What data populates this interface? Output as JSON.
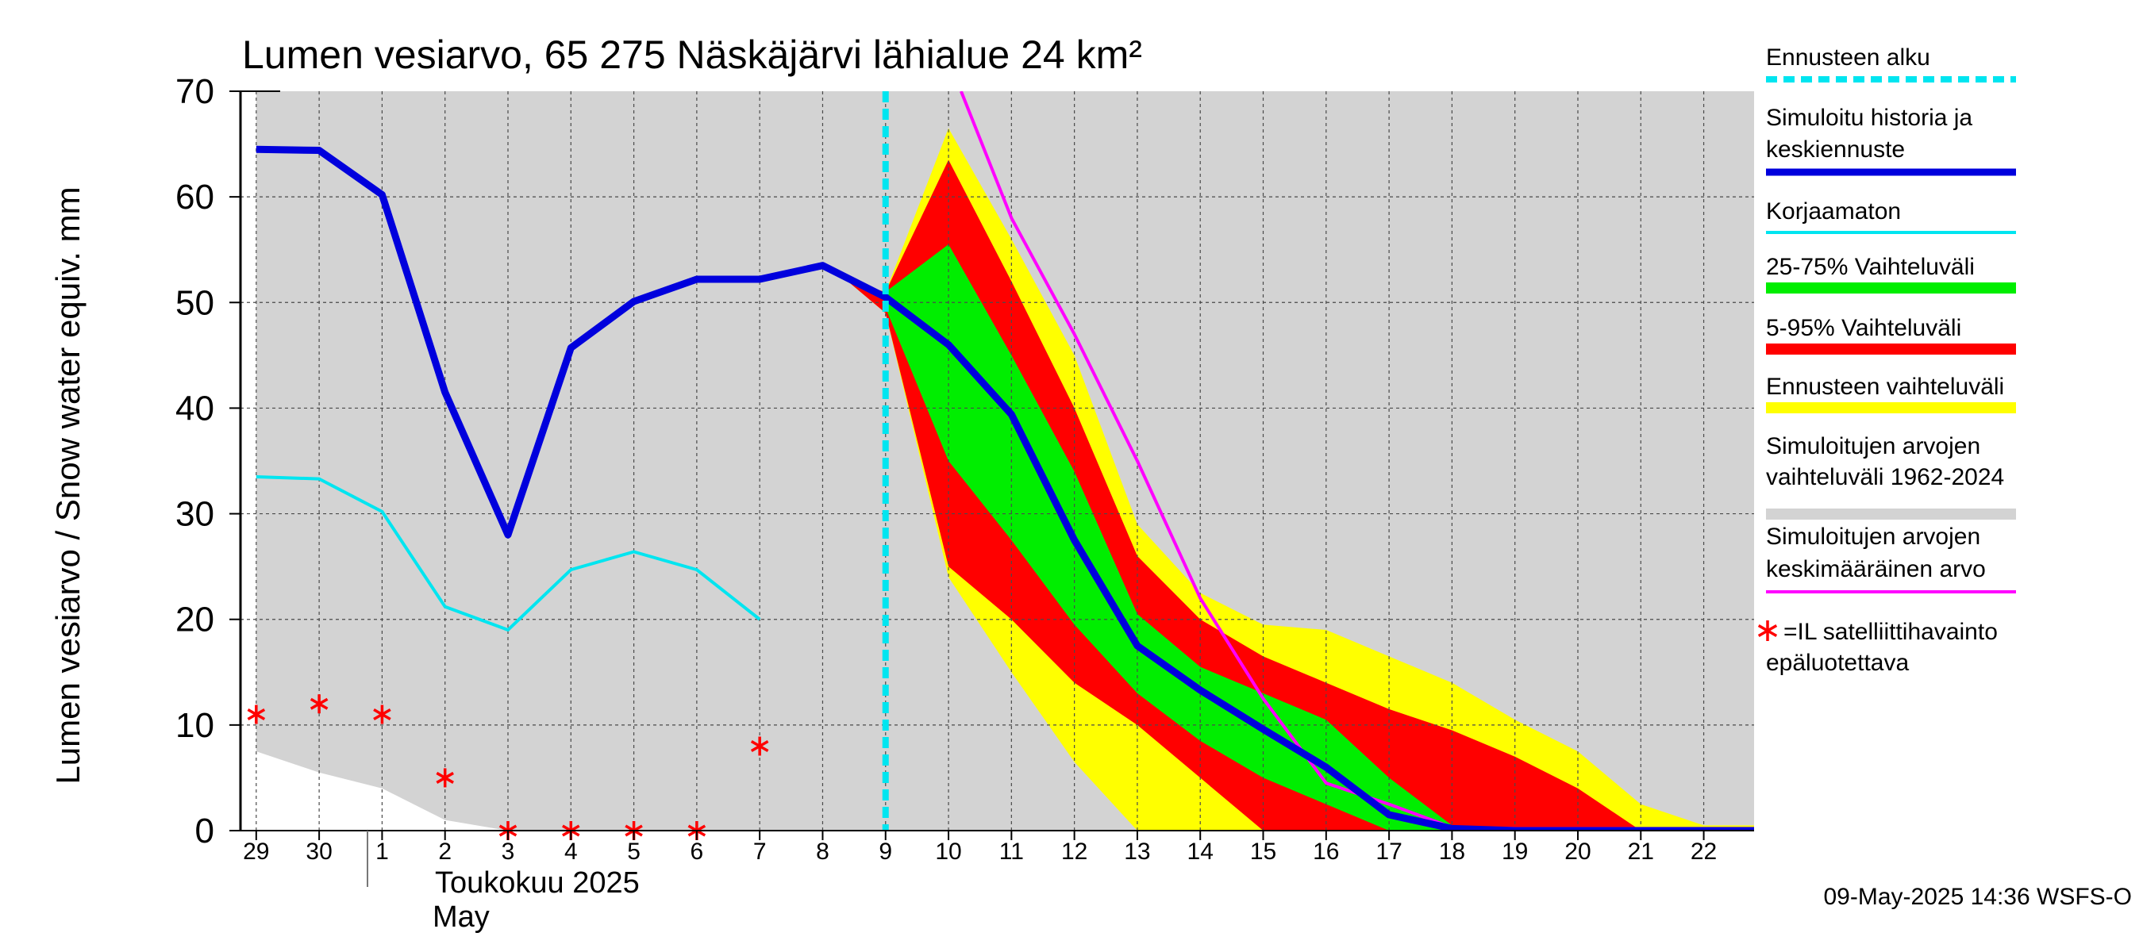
{
  "chart_data": {
    "type": "area",
    "title": "Lumen vesiarvo, 65 275 Näskäjärvi lähialue 24 km²",
    "ylabel": "Lumen vesiarvo / Snow water equiv.    mm",
    "ylim": [
      0,
      70
    ],
    "yticks": [
      "0",
      "10",
      "20",
      "30",
      "40",
      "50",
      "60",
      "70"
    ],
    "xlim": [
      -0.25,
      23.8
    ],
    "x_day_labels": [
      "29",
      "30",
      "1",
      "2",
      "3",
      "4",
      "5",
      "6",
      "7",
      "8",
      "9",
      "10",
      "11",
      "12",
      "13",
      "14",
      "15",
      "16",
      "17",
      "18",
      "19",
      "20",
      "21",
      "22"
    ],
    "month_label_fi": "Toukokuu  2025",
    "month_label_en": "May",
    "grid": true,
    "forecast_start_x": 10,
    "legend_position": "right",
    "legend": [
      {
        "label": "Ennusteen alku",
        "color": "#00e5f0",
        "style": "dashed"
      },
      {
        "label": "Simuloitu historia ja keskiennuste",
        "color": "#0000dd",
        "style": "line"
      },
      {
        "label": "Korjaamaton",
        "color": "#00e5f0",
        "style": "line"
      },
      {
        "label": "25-75% Vaihteluväli",
        "color": "#00ee00",
        "style": "band"
      },
      {
        "label": "5-95% Vaihteluväli",
        "color": "#ff0000",
        "style": "band"
      },
      {
        "label": "Ennusteen vaihteluväli",
        "color": "#ffff00",
        "style": "band"
      },
      {
        "label": "Simuloitujen arvojen vaihteluväli 1962-2024",
        "color": "#d3d3d3",
        "style": "band"
      },
      {
        "label": "Simuloitujen arvojen keskimääräinen arvo",
        "color": "#ff00ff",
        "style": "line"
      },
      {
        "label": "=IL satelliittihavainto epäluotettava",
        "color": "#ff0000",
        "style": "marker"
      }
    ],
    "series": [
      {
        "name": "Simuloitujen arvojen vaihteluväli 1962-2024",
        "kind": "band",
        "color": "#d3d3d3",
        "x": [
          0,
          1,
          2,
          3,
          4,
          5,
          6,
          7,
          8,
          9,
          10,
          11,
          12,
          13,
          14,
          15,
          16,
          17,
          18,
          19,
          20,
          21,
          22,
          23,
          23.8
        ],
        "low": [
          7.5,
          5.5,
          4,
          1,
          0,
          0,
          0,
          0,
          0,
          0,
          0,
          0,
          0,
          0,
          0,
          0,
          0,
          0,
          0,
          0,
          0,
          0,
          0,
          0,
          0
        ],
        "high": [
          70,
          70,
          70,
          70,
          70,
          70,
          70,
          70,
          70,
          70,
          70,
          70,
          70,
          70,
          70,
          70,
          70,
          70,
          70,
          70,
          70,
          70,
          70,
          70,
          70
        ]
      },
      {
        "name": "Ennusteen vaihteluväli",
        "kind": "band",
        "color": "#ffff00",
        "x": [
          9.4,
          10,
          11,
          12,
          13,
          14,
          15,
          16,
          17,
          18,
          19,
          20,
          21,
          22,
          23,
          23.8
        ],
        "low": [
          52,
          49,
          24,
          15,
          6.5,
          0,
          0,
          0,
          0,
          0,
          0,
          0,
          0,
          0,
          0,
          0
        ],
        "high": [
          52,
          51,
          66.5,
          56,
          45,
          29,
          22.5,
          19.5,
          19,
          16.5,
          14,
          10.5,
          7.5,
          2.5,
          0.5,
          0.5
        ]
      },
      {
        "name": "5-95% Vaihteluväli",
        "kind": "band",
        "color": "#ff0000",
        "x": [
          9.4,
          10,
          11,
          12,
          13,
          14,
          15,
          16,
          17,
          18,
          19,
          20,
          21,
          22,
          23,
          23.8
        ],
        "low": [
          52,
          49,
          25,
          20,
          14,
          10,
          5,
          0,
          0,
          0,
          0,
          0,
          0,
          0,
          0,
          0
        ],
        "high": [
          52,
          51,
          63.5,
          52,
          40,
          26,
          20,
          16.5,
          14,
          11.5,
          9.5,
          7,
          4,
          0,
          0,
          0
        ]
      },
      {
        "name": "25-75% Vaihteluväli",
        "kind": "band",
        "color": "#00ee00",
        "x": [
          10,
          11,
          12,
          13,
          14,
          15,
          16,
          17,
          18,
          19,
          20
        ],
        "low": [
          49.5,
          35,
          27.5,
          19.5,
          13,
          8.5,
          5,
          2.5,
          0,
          0,
          0
        ],
        "high": [
          51,
          55.5,
          45,
          34,
          20.5,
          15.5,
          13,
          10.5,
          5,
          0.5,
          0
        ]
      },
      {
        "name": "Korjaamaton",
        "kind": "line",
        "color": "#00e5f0",
        "x": [
          0,
          1,
          2,
          3,
          4,
          5,
          6,
          7,
          8
        ],
        "y": [
          33.5,
          33.3,
          30.2,
          21.2,
          19,
          24.7,
          26.4,
          24.7,
          20
        ]
      },
      {
        "name": "Simuloitujen arvojen keskimääräinen arvo",
        "kind": "line",
        "color": "#ff00ff",
        "x": [
          11.2,
          12,
          13,
          14,
          15,
          16,
          17,
          18,
          19,
          20,
          21,
          22,
          23,
          23.8
        ],
        "y": [
          70,
          58,
          47,
          35,
          22,
          12.5,
          4.5,
          2.5,
          0.3,
          0.2,
          0.2,
          0.2,
          0.2,
          0.2
        ]
      },
      {
        "name": "Simuloitu historia ja keskiennuste",
        "kind": "line",
        "color": "#0000dd",
        "x": [
          0,
          1,
          2,
          3,
          4,
          5,
          6,
          7,
          8,
          9,
          10,
          11,
          12,
          13,
          14,
          15,
          16,
          17,
          18,
          19,
          20,
          21,
          22,
          23,
          23.8
        ],
        "y": [
          64.5,
          64.4,
          60.2,
          41.5,
          28,
          45.7,
          50.1,
          52.2,
          52.2,
          53.5,
          50.5,
          46,
          39.4,
          27.5,
          17.5,
          13.3,
          9.6,
          6,
          1.5,
          0.2,
          0,
          0,
          0,
          0,
          0
        ]
      },
      {
        "name": "=IL satelliittihavainto epäluotettava",
        "kind": "marker",
        "color": "#ff0000",
        "x": [
          0,
          1,
          2,
          3,
          4,
          5,
          6,
          7,
          8
        ],
        "y": [
          11,
          12,
          11,
          5,
          0,
          0,
          0,
          0,
          8
        ]
      }
    ]
  },
  "footer": {
    "timestamp": "09-May-2025 14:36 WSFS-O"
  }
}
